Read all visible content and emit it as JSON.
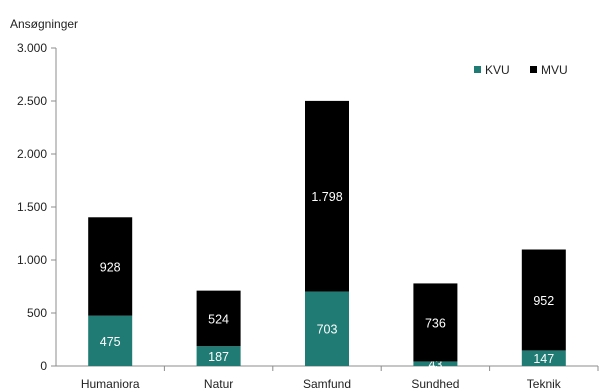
{
  "chart_data": {
    "type": "bar",
    "stacked": true,
    "title": "",
    "xlabel": "",
    "ylabel": "Ansøgninger",
    "ylim": [
      0,
      3000
    ],
    "y_ticks": [
      0,
      500,
      1000,
      1500,
      2000,
      2500,
      3000
    ],
    "y_tick_labels": [
      "0",
      "500",
      "1.000",
      "1.500",
      "2.000",
      "2.500",
      "3.000"
    ],
    "grid": false,
    "legend_position": "top-right",
    "categories": [
      "Humaniora",
      "Natur",
      "Samfund",
      "Sundhed",
      "Teknik"
    ],
    "series": [
      {
        "name": "KVU",
        "color": "#1f7b73",
        "values": [
          475,
          187,
          703,
          43,
          147
        ],
        "labels": [
          "475",
          "187",
          "703",
          "43",
          "147"
        ]
      },
      {
        "name": "MVU",
        "color": "#000000",
        "values": [
          928,
          524,
          1798,
          736,
          952
        ],
        "labels": [
          "928",
          "524",
          "1.798",
          "736",
          "952"
        ]
      }
    ]
  }
}
